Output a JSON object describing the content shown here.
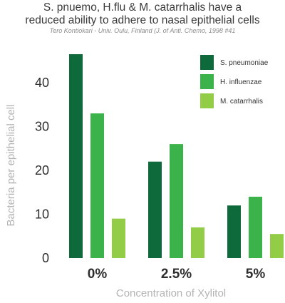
{
  "title_line1": "S. pnuemo, H.flu & M. catarrhalis have a",
  "title_line2": "reduced ability to adhere to nasal epithelial cells",
  "subtitle": "Tero Kontiokari - Univ. Oulu, Finland (J. of Anti. Chemo, 1998 #41",
  "colors": {
    "S. pneumoniae": "#0f6a3b",
    "H. influenzae": "#3bb34a",
    "M. catarrhalis": "#93cc46"
  },
  "chart_data": {
    "type": "bar",
    "title": "S. pnuemo, H.flu & M. catarrhalis have a reduced ability to adhere to nasal epithelial cells",
    "subtitle": "Tero Kontiokari - Univ. Oulu, Finland (J. of Anti. Chemo, 1998 #41",
    "xlabel": "Concentration of Xylitol",
    "ylabel": "Bacteria per epithelial cell",
    "categories": [
      "0%",
      "2.5%",
      "5%"
    ],
    "yticks": [
      0,
      10,
      20,
      30,
      40
    ],
    "ylim": [
      0,
      47
    ],
    "legend_position": "top-right",
    "grid": false,
    "series": [
      {
        "name": "S. pneumoniae",
        "values": [
          46.5,
          22,
          12
        ]
      },
      {
        "name": "H. influenzae",
        "values": [
          33,
          26,
          14
        ]
      },
      {
        "name": "M. catarrhalis",
        "values": [
          9,
          7,
          5.5
        ]
      }
    ]
  }
}
